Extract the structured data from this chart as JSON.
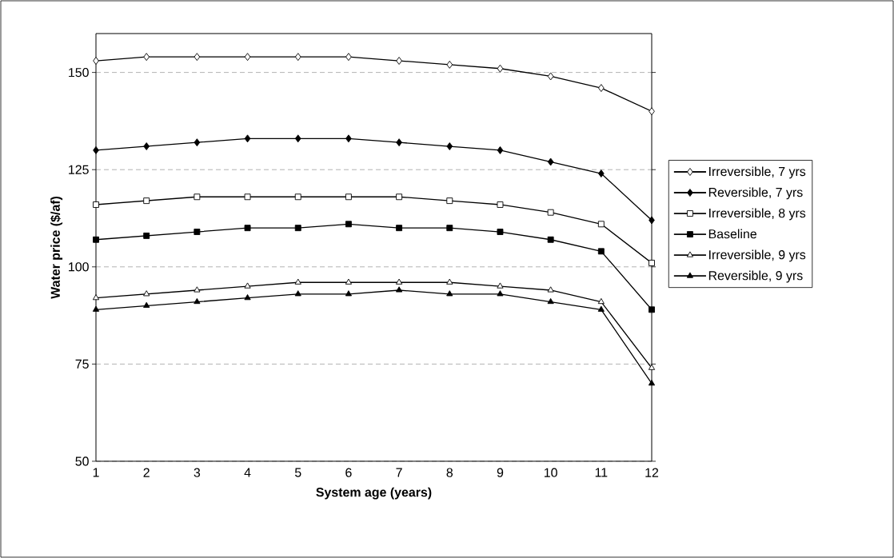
{
  "chart_data": {
    "type": "line",
    "xlabel": "System age (years)",
    "ylabel": "Water price ($/af)",
    "x": [
      1,
      2,
      3,
      4,
      5,
      6,
      7,
      8,
      9,
      10,
      11,
      12
    ],
    "series": [
      {
        "name": "Irreversible, 7 yrs",
        "color": "#000000",
        "marker": "diamond-open",
        "values": [
          153,
          154,
          154,
          154,
          154,
          154,
          153,
          152,
          151,
          149,
          146,
          140
        ]
      },
      {
        "name": "Reversible, 7 yrs",
        "color": "#000000",
        "marker": "diamond",
        "values": [
          130,
          131,
          132,
          133,
          133,
          133,
          132,
          131,
          130,
          127,
          124,
          112
        ]
      },
      {
        "name": "Irreversible, 8 yrs",
        "color": "#000000",
        "marker": "square-open",
        "values": [
          116,
          117,
          118,
          118,
          118,
          118,
          118,
          117,
          116,
          114,
          111,
          101
        ]
      },
      {
        "name": "Baseline",
        "color": "#000000",
        "marker": "square",
        "values": [
          107,
          108,
          109,
          110,
          110,
          111,
          110,
          110,
          109,
          107,
          104,
          89
        ]
      },
      {
        "name": "Irreversible, 9 yrs",
        "color": "#000000",
        "marker": "triangle-open",
        "values": [
          92,
          93,
          94,
          95,
          96,
          96,
          96,
          96,
          95,
          94,
          91,
          74
        ]
      },
      {
        "name": "Reversible, 9 yrs",
        "color": "#000000",
        "marker": "triangle",
        "values": [
          89,
          90,
          91,
          92,
          93,
          93,
          94,
          93,
          93,
          91,
          89,
          70
        ]
      }
    ],
    "xlim": [
      1,
      12
    ],
    "xticks": [
      1,
      2,
      3,
      4,
      5,
      6,
      7,
      8,
      9,
      10,
      11,
      12
    ],
    "ylim": [
      50,
      160
    ],
    "yticks": [
      50,
      75,
      100,
      125,
      150
    ],
    "grid": "y",
    "legend": "right",
    "line_style": "solid"
  }
}
